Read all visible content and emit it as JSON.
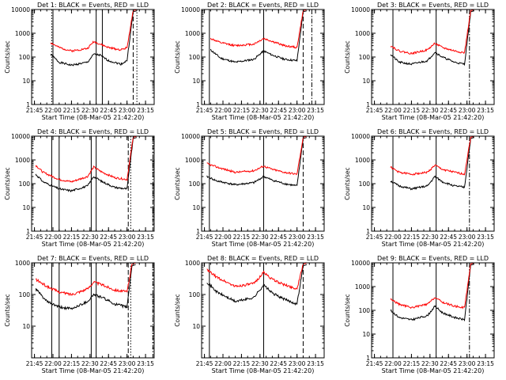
{
  "figure": {
    "xlabel": "Start Time (08-Mar-05 21:42:20)",
    "ylabel": "Counts/sec",
    "x_ticks": [
      "21:45",
      "22:00",
      "22:15",
      "22:30",
      "22:45",
      "23:00",
      "23:15"
    ],
    "y_ticks": [
      "1",
      "10",
      "100",
      "1000",
      "10000"
    ],
    "colors": {
      "events": "#000000",
      "lld": "#ff0000",
      "axes": "#000000"
    }
  },
  "chart_data": [
    {
      "type": "line",
      "title": "Det 1: BLACK = Events, RED = LLD",
      "ylabel": "Counts/sec",
      "xlabel": "Start Time (08-Mar-05 21:42:20)",
      "x_range_minutes_after_2145": [
        -2.3,
        97
      ],
      "ylim": [
        1,
        10000
      ],
      "log_y": true,
      "x_ticks": [
        "21:45",
        "22:00",
        "22:15",
        "22:30",
        "22:45",
        "23:00",
        "23:15"
      ],
      "vlines": [
        {
          "t": "22:00",
          "style": "solid"
        },
        {
          "t": "21:59",
          "style": "dotted"
        },
        {
          "t": "22:35",
          "style": "solid"
        },
        {
          "t": "22:40",
          "style": "solid"
        },
        {
          "t": "23:05",
          "style": "dashed"
        },
        {
          "t": "23:08",
          "style": "dotted"
        }
      ],
      "series": [
        {
          "name": "Events",
          "color": "#000000",
          "x": [
            "21:58",
            "22:05",
            "22:15",
            "22:28",
            "22:33",
            "22:38",
            "22:45",
            "22:55",
            "23:00",
            "23:05"
          ],
          "values": [
            130,
            60,
            45,
            60,
            130,
            120,
            70,
            50,
            70,
            8000
          ]
        },
        {
          "name": "LLD",
          "color": "#ff0000",
          "x": [
            "21:58",
            "22:05",
            "22:15",
            "22:28",
            "22:33",
            "22:38",
            "22:45",
            "22:55",
            "23:00",
            "23:05"
          ],
          "values": [
            400,
            250,
            180,
            230,
            450,
            350,
            250,
            200,
            250,
            9000
          ]
        }
      ]
    },
    {
      "type": "line",
      "title": "Det 2: BLACK = Events, RED = LLD",
      "ylabel": "Counts/sec",
      "xlabel": "Start Time (08-Mar-05 21:42:20)",
      "x_range_minutes_after_2145": [
        -2.3,
        97
      ],
      "ylim": [
        1,
        10000
      ],
      "log_y": true,
      "x_ticks": [
        "21:45",
        "22:00",
        "22:15",
        "22:30",
        "22:45",
        "23:00",
        "23:15"
      ],
      "vlines": [
        {
          "t": "21:49",
          "style": "solid"
        },
        {
          "t": "22:33",
          "style": "solid"
        },
        {
          "t": "23:05",
          "style": "dashed"
        },
        {
          "t": "23:12",
          "style": "dashdot"
        }
      ],
      "series": [
        {
          "name": "Events",
          "color": "#000000",
          "x": [
            "21:50",
            "21:58",
            "22:10",
            "22:25",
            "22:33",
            "22:40",
            "22:50",
            "23:00",
            "23:05"
          ],
          "values": [
            200,
            90,
            60,
            80,
            180,
            120,
            80,
            70,
            8000
          ]
        },
        {
          "name": "LLD",
          "color": "#ff0000",
          "x": [
            "21:50",
            "21:58",
            "22:10",
            "22:25",
            "22:33",
            "22:40",
            "22:50",
            "23:00",
            "23:05"
          ],
          "values": [
            600,
            400,
            300,
            350,
            600,
            450,
            300,
            250,
            9000
          ]
        }
      ]
    },
    {
      "type": "line",
      "title": "Det 3: BLACK = Events, RED = LLD",
      "ylabel": "Counts/sec",
      "xlabel": "Start Time (08-Mar-05 21:42:20)",
      "x_range_minutes_after_2145": [
        -2.3,
        97
      ],
      "ylim": [
        1,
        10000
      ],
      "log_y": true,
      "x_ticks": [
        "21:45",
        "22:00",
        "22:15",
        "22:30",
        "22:45",
        "23:00",
        "23:15"
      ],
      "vlines": [
        {
          "t": "22:00",
          "style": "solid"
        },
        {
          "t": "22:35",
          "style": "solid"
        },
        {
          "t": "23:02",
          "style": "dashdot"
        }
      ],
      "series": [
        {
          "name": "Events",
          "color": "#000000",
          "x": [
            "21:58",
            "22:05",
            "22:15",
            "22:28",
            "22:34",
            "22:40",
            "22:50",
            "22:58",
            "23:03"
          ],
          "values": [
            130,
            60,
            50,
            70,
            160,
            100,
            60,
            50,
            8000
          ]
        },
        {
          "name": "LLD",
          "color": "#ff0000",
          "x": [
            "21:58",
            "22:05",
            "22:15",
            "22:28",
            "22:34",
            "22:40",
            "22:50",
            "22:58",
            "23:03"
          ],
          "values": [
            300,
            180,
            140,
            200,
            380,
            250,
            180,
            150,
            9000
          ]
        }
      ]
    },
    {
      "type": "line",
      "title": "Det 4: BLACK = Events, RED = LLD",
      "ylabel": "Counts/sec",
      "xlabel": "Start Time (08-Mar-05 21:42:20)",
      "x_range_minutes_after_2145": [
        -2.3,
        97
      ],
      "ylim": [
        1,
        10000
      ],
      "log_y": true,
      "x_ticks": [
        "21:45",
        "22:00",
        "22:15",
        "22:30",
        "22:45",
        "23:00",
        "23:15"
      ],
      "vlines": [
        {
          "t": "21:59",
          "style": "solid"
        },
        {
          "t": "22:05",
          "style": "solid"
        },
        {
          "t": "22:31",
          "style": "solid"
        },
        {
          "t": "22:35",
          "style": "solid"
        },
        {
          "t": "23:01",
          "style": "dashed"
        },
        {
          "t": "23:03",
          "style": "dotted"
        },
        {
          "t": "23:21",
          "style": "dashdot"
        }
      ],
      "series": [
        {
          "name": "Events",
          "color": "#000000",
          "x": [
            "21:46",
            "21:52",
            "22:05",
            "22:15",
            "22:28",
            "22:33",
            "22:40",
            "22:50",
            "23:00",
            "23:05"
          ],
          "values": [
            250,
            120,
            60,
            50,
            80,
            200,
            120,
            70,
            60,
            8000
          ]
        },
        {
          "name": "LLD",
          "color": "#ff0000",
          "x": [
            "21:46",
            "21:52",
            "22:05",
            "22:15",
            "22:28",
            "22:33",
            "22:40",
            "22:50",
            "23:00",
            "23:05"
          ],
          "values": [
            600,
            300,
            150,
            120,
            200,
            500,
            300,
            180,
            150,
            9000
          ]
        }
      ]
    },
    {
      "type": "line",
      "title": "Det 5: BLACK = Events, RED = LLD",
      "ylabel": "Counts/sec",
      "xlabel": "Start Time (08-Mar-05 21:42:20)",
      "x_range_minutes_after_2145": [
        -2.3,
        97
      ],
      "ylim": [
        1,
        10000
      ],
      "log_y": true,
      "x_ticks": [
        "21:45",
        "22:00",
        "22:15",
        "22:30",
        "22:45",
        "23:00",
        "23:15"
      ],
      "vlines": [
        {
          "t": "21:49",
          "style": "solid"
        },
        {
          "t": "22:33",
          "style": "solid"
        },
        {
          "t": "23:05",
          "style": "dashed"
        }
      ],
      "series": [
        {
          "name": "Events",
          "color": "#000000",
          "x": [
            "21:47",
            "21:55",
            "22:10",
            "22:25",
            "22:33",
            "22:40",
            "22:50",
            "23:00",
            "23:05"
          ],
          "values": [
            200,
            130,
            90,
            110,
            200,
            140,
            100,
            80,
            8000
          ]
        },
        {
          "name": "LLD",
          "color": "#ff0000",
          "x": [
            "21:47",
            "21:55",
            "22:10",
            "22:25",
            "22:33",
            "22:40",
            "22:50",
            "23:00",
            "23:05"
          ],
          "values": [
            700,
            500,
            300,
            350,
            550,
            400,
            300,
            250,
            9000
          ]
        }
      ]
    },
    {
      "type": "line",
      "title": "Det 6: BLACK = Events, RED = LLD",
      "ylabel": "Counts/sec",
      "xlabel": "Start Time (08-Mar-05 21:42:20)",
      "x_range_minutes_after_2145": [
        -2.3,
        97
      ],
      "ylim": [
        1,
        10000
      ],
      "log_y": true,
      "x_ticks": [
        "21:45",
        "22:00",
        "22:15",
        "22:30",
        "22:45",
        "23:00",
        "23:15"
      ],
      "vlines": [
        {
          "t": "22:00",
          "style": "solid"
        },
        {
          "t": "22:35",
          "style": "solid"
        },
        {
          "t": "23:02",
          "style": "dashdot"
        }
      ],
      "series": [
        {
          "name": "Events",
          "color": "#000000",
          "x": [
            "21:58",
            "22:05",
            "22:15",
            "22:28",
            "22:34",
            "22:40",
            "22:50",
            "22:58",
            "23:03"
          ],
          "values": [
            130,
            80,
            60,
            80,
            200,
            120,
            80,
            70,
            8000
          ]
        },
        {
          "name": "LLD",
          "color": "#ff0000",
          "x": [
            "21:58",
            "22:05",
            "22:15",
            "22:28",
            "22:34",
            "22:40",
            "22:50",
            "22:58",
            "23:03"
          ],
          "values": [
            500,
            300,
            250,
            300,
            600,
            400,
            300,
            250,
            9000
          ]
        }
      ]
    },
    {
      "type": "line",
      "title": "Det 7: BLACK = Events, RED = LLD",
      "ylabel": "Counts/sec",
      "xlabel": "Start Time (08-Mar-05 21:42:20)",
      "x_range_minutes_after_2145": [
        -2.3,
        97
      ],
      "ylim": [
        1,
        1000
      ],
      "log_y": true,
      "x_ticks": [
        "21:45",
        "22:00",
        "22:15",
        "22:30",
        "22:45",
        "23:00",
        "23:15"
      ],
      "y_ticks": [
        "10",
        "100",
        "1000"
      ],
      "vlines": [
        {
          "t": "21:59",
          "style": "solid"
        },
        {
          "t": "22:05",
          "style": "solid"
        },
        {
          "t": "22:31",
          "style": "solid"
        },
        {
          "t": "22:35",
          "style": "solid"
        },
        {
          "t": "23:01",
          "style": "dashed"
        },
        {
          "t": "23:03",
          "style": "dotted"
        },
        {
          "t": "23:21",
          "style": "dashdot"
        }
      ],
      "series": [
        {
          "name": "Events",
          "color": "#000000",
          "x": [
            "21:46",
            "21:55",
            "22:05",
            "22:15",
            "22:28",
            "22:33",
            "22:40",
            "22:50",
            "23:00",
            "23:04"
          ],
          "values": [
            150,
            60,
            40,
            35,
            60,
            100,
            80,
            50,
            40,
            800
          ]
        },
        {
          "name": "LLD",
          "color": "#ff0000",
          "x": [
            "21:46",
            "21:55",
            "22:05",
            "22:15",
            "22:28",
            "22:33",
            "22:40",
            "22:50",
            "23:00",
            "23:04"
          ],
          "values": [
            300,
            180,
            120,
            100,
            150,
            250,
            200,
            140,
            120,
            900
          ]
        }
      ]
    },
    {
      "type": "line",
      "title": "Det 8: BLACK = Events, RED = LLD",
      "ylabel": "Counts/sec",
      "xlabel": "Start Time (08-Mar-05 21:42:20)",
      "x_range_minutes_after_2145": [
        -2.3,
        97
      ],
      "ylim": [
        1,
        1000
      ],
      "log_y": true,
      "x_ticks": [
        "21:45",
        "22:00",
        "22:15",
        "22:30",
        "22:45",
        "23:00",
        "23:15"
      ],
      "y_ticks": [
        "10",
        "100",
        "1000"
      ],
      "vlines": [
        {
          "t": "21:49",
          "style": "solid"
        },
        {
          "t": "22:33",
          "style": "solid"
        },
        {
          "t": "23:05",
          "style": "dashed"
        }
      ],
      "series": [
        {
          "name": "Events",
          "color": "#000000",
          "x": [
            "21:47",
            "21:55",
            "22:10",
            "22:25",
            "22:33",
            "22:40",
            "22:50",
            "23:00",
            "23:05"
          ],
          "values": [
            250,
            120,
            60,
            80,
            200,
            110,
            70,
            50,
            800
          ]
        },
        {
          "name": "LLD",
          "color": "#ff0000",
          "x": [
            "21:47",
            "21:55",
            "22:10",
            "22:25",
            "22:33",
            "22:40",
            "22:50",
            "23:00",
            "23:05"
          ],
          "values": [
            600,
            350,
            180,
            220,
            500,
            300,
            200,
            150,
            900
          ]
        }
      ]
    },
    {
      "type": "line",
      "title": "Det 9: BLACK = Events, RED = LLD",
      "ylabel": "Counts/sec",
      "xlabel": "Start Time (08-Mar-05 21:42:20)",
      "x_range_minutes_after_2145": [
        -2.3,
        97
      ],
      "ylim": [
        1,
        10000
      ],
      "log_y": true,
      "x_ticks": [
        "21:45",
        "22:00",
        "22:15",
        "22:30",
        "22:45",
        "23:00",
        "23:15"
      ],
      "vlines": [
        {
          "t": "22:00",
          "style": "solid"
        },
        {
          "t": "22:35",
          "style": "solid"
        },
        {
          "t": "23:02",
          "style": "dashdot"
        }
      ],
      "series": [
        {
          "name": "Events",
          "color": "#000000",
          "x": [
            "21:58",
            "22:05",
            "22:15",
            "22:28",
            "22:34",
            "22:40",
            "22:50",
            "22:58",
            "23:03"
          ],
          "values": [
            100,
            50,
            40,
            60,
            150,
            80,
            50,
            40,
            8000
          ]
        },
        {
          "name": "LLD",
          "color": "#ff0000",
          "x": [
            "21:58",
            "22:05",
            "22:15",
            "22:28",
            "22:34",
            "22:40",
            "22:50",
            "22:58",
            "23:03"
          ],
          "values": [
            300,
            180,
            130,
            180,
            350,
            220,
            150,
            130,
            9000
          ]
        }
      ]
    }
  ]
}
